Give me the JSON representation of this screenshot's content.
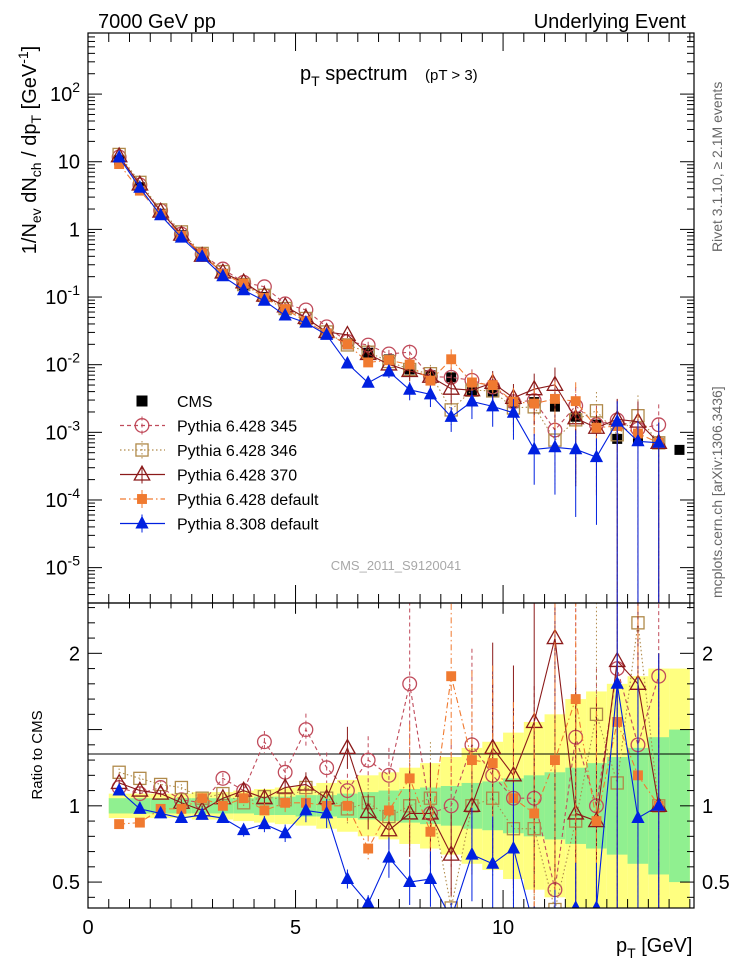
{
  "header": {
    "left": "7000 GeV pp",
    "right": "Underlying Event"
  },
  "side_labels": {
    "top": "Rivet 3.1.10, ≥ 2.1M events",
    "bottom": "mcplots.cern.ch [arXiv:1306.3436]"
  },
  "watermark": "CMS_2011_S9120041",
  "chart_data": {
    "type": "scatter",
    "title": "p_T spectrum",
    "subtitle": "(pT > 3)",
    "xlabel": "p_T [GeV]",
    "ylabel": "1/N_ev dN_ch / dp_T [GeV^-1]",
    "ratio_ylabel": "Ratio to CMS",
    "xlim": [
      0,
      14.6
    ],
    "ylim": [
      3e-06,
      800
    ],
    "yscale": "log",
    "ratio_ylim": [
      0.33,
      2.33
    ],
    "x_ticks": [
      "0",
      "5",
      "10"
    ],
    "y_ticks": [
      "10^-5",
      "10^-4",
      "10^-3",
      "10^-2",
      "10^-1",
      "1",
      "10",
      "10^2"
    ],
    "ratio_ticks": [
      "0.5",
      "1",
      "2"
    ],
    "legend_position": "left",
    "x": [
      0.75,
      1.25,
      1.75,
      2.25,
      2.75,
      3.25,
      3.75,
      4.25,
      4.75,
      5.25,
      5.75,
      6.25,
      6.75,
      7.25,
      7.75,
      8.25,
      8.75,
      9.25,
      9.75,
      10.25,
      10.75,
      11.25,
      11.75,
      12.25,
      12.75,
      13.25,
      13.75,
      14.25
    ],
    "cms": {
      "name": "CMS",
      "values": [
        10.5,
        4.2,
        1.7,
        0.82,
        0.42,
        0.22,
        0.15,
        0.1,
        0.065,
        0.043,
        0.029,
        0.02,
        0.015,
        0.012,
        0.0085,
        0.007,
        0.0065,
        0.0042,
        0.0039,
        0.0027,
        0.0028,
        0.0024,
        0.0017,
        0.0013,
        0.0008,
        0.0008,
        0.0007,
        0.00055
      ],
      "band_inner": [
        0.05,
        0.05,
        0.05,
        0.05,
        0.05,
        0.05,
        0.05,
        0.06,
        0.06,
        0.07,
        0.07,
        0.08,
        0.09,
        0.1,
        0.11,
        0.12,
        0.13,
        0.15,
        0.16,
        0.18,
        0.2,
        0.22,
        0.25,
        0.28,
        0.32,
        0.38,
        0.45,
        0.5
      ],
      "band_outer": [
        0.08,
        0.08,
        0.08,
        0.08,
        0.09,
        0.09,
        0.1,
        0.11,
        0.12,
        0.13,
        0.15,
        0.17,
        0.2,
        0.22,
        0.25,
        0.28,
        0.32,
        0.38,
        0.42,
        0.48,
        0.55,
        0.6,
        0.7,
        0.75,
        0.8,
        0.85,
        0.9,
        0.9
      ]
    },
    "series": [
      {
        "name": "Pythia 6.428 345",
        "color": "#c04b5b",
        "marker": "circle-open",
        "line": "dashed",
        "ratio": [
          1.12,
          1.08,
          1.12,
          1.04,
          1.02,
          1.18,
          1.1,
          1.42,
          1.22,
          1.5,
          1.25,
          1.1,
          1.3,
          1.2,
          1.8,
          0.95,
          1.0,
          1.4,
          1.2,
          1.05,
          1.05,
          0.45,
          1.45,
          1.0,
          1.9,
          1.4,
          1.85,
          1.15
        ],
        "ratio_err": [
          0.02,
          0.02,
          0.02,
          0.02,
          0.03,
          0.03,
          0.04,
          0.05,
          0.06,
          0.07,
          0.08,
          0.1,
          0.12,
          0.15,
          0.3,
          0.35,
          0.4,
          0.45,
          0.5,
          0.6,
          0.7,
          0.8,
          0.9,
          0.9,
          1.0,
          1.0,
          1.0,
          0.5
        ]
      },
      {
        "name": "Pythia 6.428 346",
        "color": "#b08a4a",
        "marker": "square-open",
        "line": "dotted",
        "ratio": [
          1.22,
          1.18,
          1.14,
          1.12,
          1.05,
          1.08,
          1.02,
          1.06,
          1.04,
          1.12,
          1.05,
          0.98,
          1.02,
          0.93,
          1.0,
          1.05,
          0.33,
          1.0,
          1.05,
          0.85,
          0.85,
          0.32,
          0.9,
          1.6,
          1.15,
          2.2,
          1.0,
          1.0
        ],
        "ratio_err": [
          0.02,
          0.02,
          0.02,
          0.02,
          0.03,
          0.03,
          0.04,
          0.05,
          0.06,
          0.07,
          0.08,
          0.1,
          0.12,
          0.15,
          0.3,
          0.35,
          0.4,
          0.45,
          0.5,
          0.6,
          0.7,
          0.8,
          0.9,
          0.9,
          1.0,
          1.0,
          1.0,
          0.5
        ]
      },
      {
        "name": "Pythia 6.428 370",
        "color": "#8b1a1a",
        "marker": "triangle-open",
        "line": "solid",
        "ratio": [
          1.15,
          1.1,
          1.08,
          1.02,
          0.97,
          1.05,
          1.1,
          1.05,
          1.12,
          1.14,
          1.05,
          1.38,
          0.96,
          0.84,
          0.95,
          0.95,
          0.68,
          1.0,
          1.38,
          1.2,
          1.55,
          2.1,
          0.95,
          0.9,
          1.95,
          1.8,
          1.0,
          1.0
        ],
        "ratio_err": [
          0.02,
          0.02,
          0.02,
          0.02,
          0.03,
          0.03,
          0.04,
          0.05,
          0.06,
          0.07,
          0.08,
          0.1,
          0.12,
          0.15,
          0.3,
          0.35,
          0.4,
          0.45,
          0.5,
          0.6,
          0.7,
          0.8,
          0.9,
          0.9,
          1.0,
          1.0,
          1.0,
          0.5
        ]
      },
      {
        "name": "Pythia 6.428 default",
        "color": "#f07a30",
        "marker": "square-filled",
        "line": "dashdot",
        "ratio": [
          0.88,
          0.89,
          0.98,
          0.98,
          1.05,
          1.0,
          1.05,
          0.97,
          1.02,
          1.02,
          1.0,
          1.0,
          0.72,
          0.97,
          1.18,
          0.83,
          1.85,
          1.3,
          1.28,
          1.05,
          0.95,
          1.3,
          1.7,
          0.9,
          1.55,
          1.2,
          1.0,
          1.0
        ],
        "ratio_err": [
          0.02,
          0.02,
          0.02,
          0.02,
          0.03,
          0.03,
          0.04,
          0.05,
          0.06,
          0.07,
          0.08,
          0.1,
          0.12,
          0.15,
          0.3,
          0.35,
          0.4,
          0.45,
          0.5,
          0.6,
          0.7,
          0.8,
          0.9,
          0.9,
          1.0,
          1.0,
          1.0,
          0.5
        ]
      },
      {
        "name": "Pythia 8.308 default",
        "color": "#0020e0",
        "marker": "triangle-filled",
        "line": "solid",
        "ratio": [
          1.1,
          0.98,
          0.95,
          0.92,
          0.94,
          0.92,
          0.84,
          0.88,
          0.82,
          0.97,
          0.95,
          0.52,
          0.36,
          0.66,
          0.5,
          0.52,
          0.26,
          0.68,
          0.62,
          0.72,
          0.2,
          0.25,
          0.33,
          0.33,
          1.8,
          0.92,
          1.0,
          1.0
        ],
        "ratio_err": [
          0.02,
          0.02,
          0.02,
          0.02,
          0.03,
          0.03,
          0.05,
          0.06,
          0.07,
          0.08,
          0.1,
          0.12,
          0.15,
          0.2,
          0.3,
          0.35,
          0.4,
          0.45,
          0.5,
          0.6,
          0.7,
          0.8,
          0.9,
          0.9,
          1.0,
          1.0,
          1.0,
          0.5
        ]
      }
    ],
    "main_npoints": [
      27,
      27,
      27,
      27,
      27
    ]
  }
}
